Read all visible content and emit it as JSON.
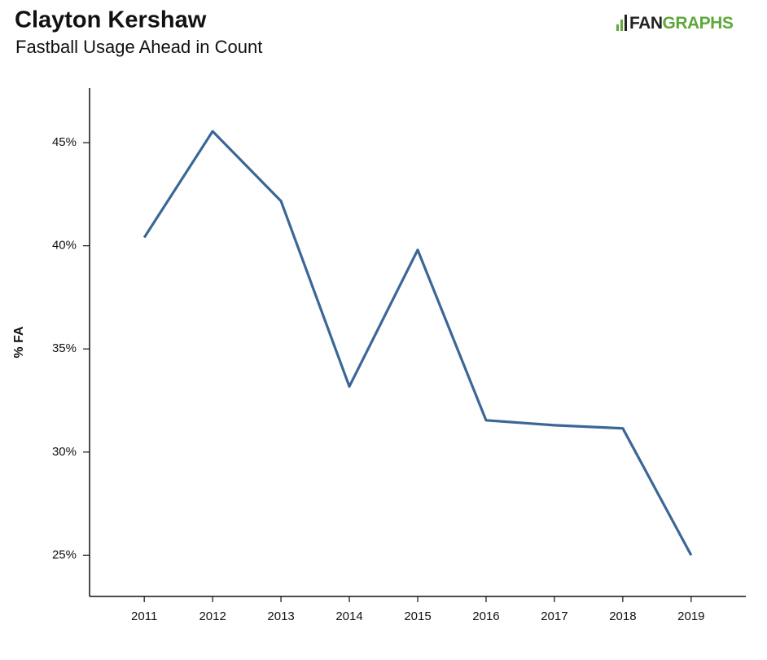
{
  "chart_data": {
    "type": "line",
    "title": "Clayton Kershaw",
    "subtitle": "Fastball Usage Ahead in Count",
    "y_label": "% FA",
    "x": [
      2011,
      2012,
      2013,
      2014,
      2015,
      2016,
      2017,
      2018,
      2019
    ],
    "series": [
      {
        "name": "% FA",
        "color": "#3b6797",
        "values": [
          40.4,
          45.55,
          42.17,
          33.18,
          39.8,
          31.54,
          31.3,
          31.15,
          25.0
        ]
      }
    ],
    "xlim": [
      2010.2,
      2019.8
    ],
    "xticks": [
      2011,
      2012,
      2013,
      2014,
      2015,
      2016,
      2017,
      2018,
      2019
    ],
    "ylim": [
      23.0,
      47.65
    ],
    "yticks": [
      {
        "value": 25,
        "label": "25%"
      },
      {
        "value": 30,
        "label": "30%"
      },
      {
        "value": 35,
        "label": "35%"
      },
      {
        "value": 40,
        "label": "40%"
      },
      {
        "value": 45,
        "label": "45%"
      }
    ],
    "grid": false
  },
  "logo": [
    "FAN",
    "GRAPHS"
  ]
}
